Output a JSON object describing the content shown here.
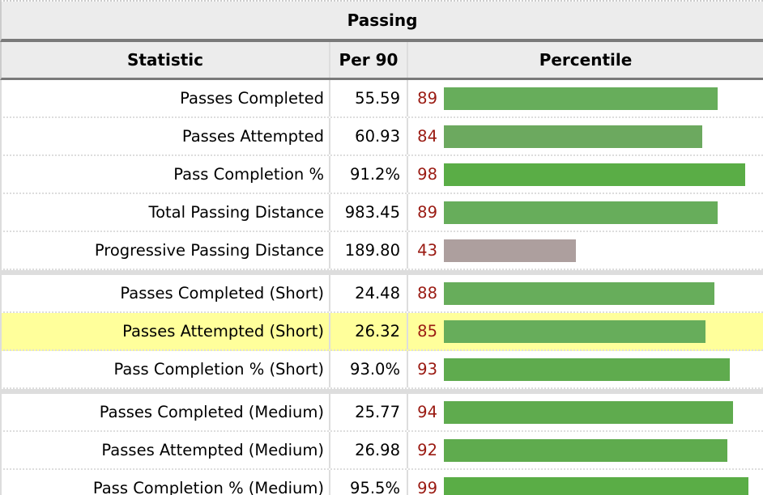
{
  "title": "Passing",
  "headers": {
    "statistic": "Statistic",
    "per90": "Per 90",
    "percentile": "Percentile"
  },
  "groups": [
    [
      {
        "stat": "Passes Completed",
        "per90": "55.59",
        "percentile": 89
      },
      {
        "stat": "Passes Attempted",
        "per90": "60.93",
        "percentile": 84
      },
      {
        "stat": "Pass Completion %",
        "per90": "91.2%",
        "percentile": 98
      },
      {
        "stat": "Total Passing Distance",
        "per90": "983.45",
        "percentile": 89
      },
      {
        "stat": "Progressive Passing Distance",
        "per90": "189.80",
        "percentile": 43
      }
    ],
    [
      {
        "stat": "Passes Completed (Short)",
        "per90": "24.48",
        "percentile": 88
      },
      {
        "stat": "Passes Attempted (Short)",
        "per90": "26.32",
        "percentile": 85,
        "highlighted": true
      },
      {
        "stat": "Pass Completion % (Short)",
        "per90": "93.0%",
        "percentile": 93
      }
    ],
    [
      {
        "stat": "Passes Completed (Medium)",
        "per90": "25.77",
        "percentile": 94
      },
      {
        "stat": "Passes Attempted (Medium)",
        "per90": "26.98",
        "percentile": 92
      },
      {
        "stat": "Pass Completion % (Medium)",
        "per90": "95.5%",
        "percentile": 99
      }
    ]
  ],
  "colors": {
    "high": "#5aad46",
    "good": "#67ad5b",
    "ok": "#6ca95f",
    "low": "#ad9f9e",
    "percentile_text": "#9a1a12",
    "highlight": "#ffff9b"
  }
}
